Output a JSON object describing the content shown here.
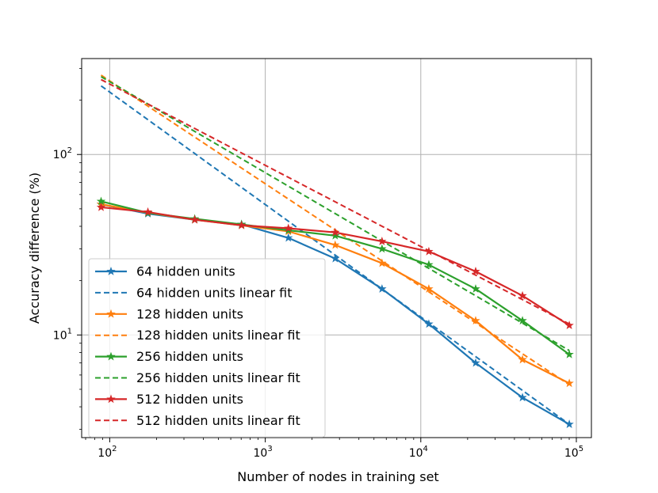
{
  "chart_data": {
    "type": "line",
    "title": "",
    "xlabel": "Number of nodes in training set",
    "ylabel": "Accuracy difference (%)",
    "xscale": "log",
    "yscale": "log",
    "xlim": [
      66,
      125000
    ],
    "ylim": [
      2.7,
      340
    ],
    "grid": true,
    "legend_position": "lower-left",
    "x_ticks": [
      {
        "value": 100,
        "base": "10",
        "exp": "2"
      },
      {
        "value": 1000,
        "base": "10",
        "exp": "3"
      },
      {
        "value": 10000,
        "base": "10",
        "exp": "4"
      },
      {
        "value": 100000,
        "base": "10",
        "exp": "5"
      }
    ],
    "y_ticks": [
      {
        "value": 10,
        "base": "10",
        "exp": "1"
      },
      {
        "value": 100,
        "base": "10",
        "exp": "2"
      }
    ],
    "x": [
      88,
      176,
      352,
      704,
      1408,
      2816,
      5632,
      11264,
      22528,
      45056,
      90112
    ],
    "series": [
      {
        "name": "64 hidden units",
        "color": "#1f77b4",
        "style": "solid-star",
        "values": [
          53,
          47,
          43.5,
          41,
          34.5,
          26.5,
          18,
          11.5,
          7,
          4.5,
          3.2
        ]
      },
      {
        "name": "64 hidden units linear fit",
        "color": "#1f77b4",
        "style": "dashed",
        "endpoints": {
          "x": [
            88,
            90112
          ],
          "y": [
            240,
            3.2
          ]
        }
      },
      {
        "name": "128 hidden units",
        "color": "#ff7f0e",
        "style": "solid-star",
        "values": [
          53,
          47.5,
          43.5,
          40.5,
          37.5,
          31.5,
          25,
          18,
          12,
          7.3,
          5.4
        ]
      },
      {
        "name": "128 hidden units linear fit",
        "color": "#ff7f0e",
        "style": "dashed",
        "endpoints": {
          "x": [
            88,
            90112
          ],
          "y": [
            275,
            5.3
          ]
        }
      },
      {
        "name": "256 hidden units",
        "color": "#2ca02c",
        "style": "solid-star",
        "values": [
          55,
          47.5,
          44,
          41,
          38,
          35.5,
          30,
          24.5,
          18,
          12,
          7.8
        ]
      },
      {
        "name": "256 hidden units linear fit",
        "color": "#2ca02c",
        "style": "dashed",
        "endpoints": {
          "x": [
            88,
            90112
          ],
          "y": [
            270,
            8.2
          ]
        }
      },
      {
        "name": "512 hidden units",
        "color": "#d62728",
        "style": "solid-star",
        "values": [
          51,
          48,
          43.5,
          40.5,
          39,
          37,
          33,
          29,
          22.5,
          16.5,
          11.3
        ]
      },
      {
        "name": "512 hidden units linear fit",
        "color": "#d62728",
        "style": "dashed",
        "endpoints": {
          "x": [
            88,
            90112
          ],
          "y": [
            260,
            11.5
          ]
        }
      }
    ]
  }
}
